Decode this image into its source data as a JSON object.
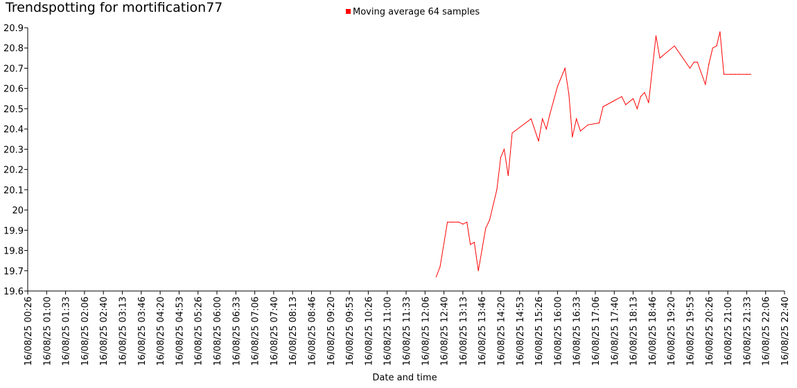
{
  "chart_data": {
    "type": "line",
    "title": "Trendspotting for mortification77",
    "xlabel": "Date and time",
    "ylabel": "",
    "ylim": [
      19.6,
      20.9
    ],
    "yticks": [
      "19.6",
      "19.7",
      "19.8",
      "19.9",
      "20",
      "20.1",
      "20.2",
      "20.3",
      "20.4",
      "20.5",
      "20.6",
      "20.7",
      "20.8",
      "20.9"
    ],
    "xticks": [
      "16/08/25 00:26",
      "16/08/25 01:00",
      "16/08/25 01:33",
      "16/08/25 02:06",
      "16/08/25 02:40",
      "16/08/25 03:13",
      "16/08/25 03:46",
      "16/08/25 04:20",
      "16/08/25 04:53",
      "16/08/25 05:26",
      "16/08/25 06:00",
      "16/08/25 06:33",
      "16/08/25 07:06",
      "16/08/25 07:40",
      "16/08/25 08:13",
      "16/08/25 08:46",
      "16/08/25 09:20",
      "16/08/25 09:53",
      "16/08/25 10:26",
      "16/08/25 11:00",
      "16/08/25 11:33",
      "16/08/25 12:06",
      "16/08/25 12:40",
      "16/08/25 13:13",
      "16/08/25 13:46",
      "16/08/25 14:20",
      "16/08/25 14:53",
      "16/08/25 15:26",
      "16/08/25 16:00",
      "16/08/25 16:33",
      "16/08/25 17:06",
      "16/08/25 17:40",
      "16/08/25 18:13",
      "16/08/25 18:46",
      "16/08/25 19:20",
      "16/08/25 19:53",
      "16/08/25 20:26",
      "16/08/25 21:00",
      "16/08/25 21:33",
      "16/08/25 22:06",
      "16/08/25 22:40"
    ],
    "legend": {
      "position": "top-center",
      "entries": [
        {
          "name": "Moving average 64 samples",
          "color": "#ff0000"
        }
      ]
    },
    "grid": false,
    "series": [
      {
        "name": "Moving average 64 samples",
        "color": "#ff0000",
        "x": [
          "16/08/25 12:26",
          "16/08/25 12:33",
          "16/08/25 12:46",
          "16/08/25 12:53",
          "16/08/25 13:06",
          "16/08/25 13:13",
          "16/08/25 13:20",
          "16/08/25 13:26",
          "16/08/25 13:33",
          "16/08/25 13:40",
          "16/08/25 13:53",
          "16/08/25 14:00",
          "16/08/25 14:13",
          "16/08/25 14:20",
          "16/08/25 14:26",
          "16/08/25 14:33",
          "16/08/25 14:40",
          "16/08/25 15:13",
          "16/08/25 15:26",
          "16/08/25 15:33",
          "16/08/25 15:40",
          "16/08/25 15:46",
          "16/08/25 15:53",
          "16/08/25 16:00",
          "16/08/25 16:13",
          "16/08/25 16:20",
          "16/08/25 16:26",
          "16/08/25 16:33",
          "16/08/25 16:40",
          "16/08/25 16:53",
          "16/08/25 17:13",
          "16/08/25 17:20",
          "16/08/25 17:53",
          "16/08/25 18:00",
          "16/08/25 18:13",
          "16/08/25 18:20",
          "16/08/25 18:26",
          "16/08/25 18:33",
          "16/08/25 18:40",
          "16/08/25 18:53",
          "16/08/25 19:00",
          "16/08/25 19:26",
          "16/08/25 19:53",
          "16/08/25 20:00",
          "16/08/25 20:06",
          "16/08/25 20:20",
          "16/08/25 20:26",
          "16/08/25 20:33",
          "16/08/25 20:40",
          "16/08/25 20:46",
          "16/08/25 20:53",
          "16/08/25 21:06",
          "16/08/25 21:13",
          "16/08/25 21:20",
          "16/08/25 21:33",
          "16/08/25 21:40"
        ],
        "values": [
          19.67,
          19.72,
          19.94,
          19.94,
          19.94,
          19.93,
          19.94,
          19.83,
          19.84,
          19.7,
          19.91,
          19.95,
          20.1,
          20.26,
          20.3,
          20.17,
          20.38,
          20.45,
          20.34,
          20.45,
          20.4,
          20.47,
          20.54,
          20.61,
          20.7,
          20.57,
          20.36,
          20.45,
          20.39,
          20.42,
          20.43,
          20.51,
          20.56,
          20.52,
          20.55,
          20.5,
          20.56,
          20.58,
          20.53,
          20.86,
          20.75,
          20.81,
          20.7,
          20.73,
          20.73,
          20.62,
          20.72,
          20.8,
          20.81,
          20.88,
          20.67,
          20.67,
          20.67,
          20.67,
          20.67,
          20.67
        ]
      }
    ]
  }
}
